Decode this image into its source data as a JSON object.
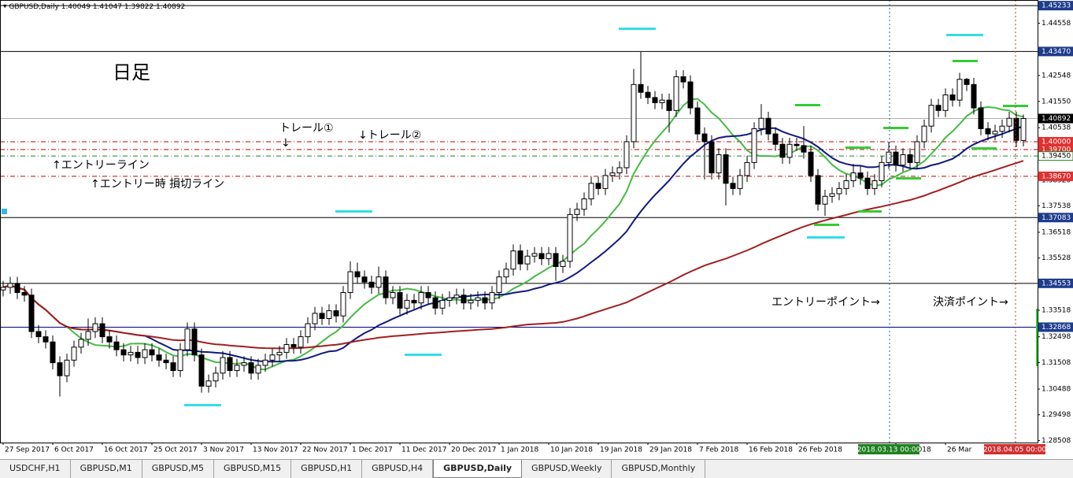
{
  "header": {
    "symbol": "GBPUSD,Daily"
  },
  "chart_data": {
    "type": "candlestick",
    "ylim": [
      1.2843,
      1.4545
    ],
    "yticks": [
      1.44558,
      1.42548,
      {
        "value": 1.4155,
        "label": "1.41550"
      },
      1.40538,
      {
        "value": 1.3852,
        "label": "1.38520"
      },
      1.37538,
      1.36518,
      1.35528,
      1.33518,
      1.32498,
      1.31508,
      1.30488,
      1.29498,
      1.28508
    ],
    "levels": [
      {
        "value": 1.45233,
        "label": "1.45233",
        "color": "#000000",
        "box": "#1e3c8c",
        "style": "solid"
      },
      {
        "value": 1.4347,
        "label": "1.43470",
        "color": "#000000",
        "box": "#1e3c8c",
        "style": "solid"
      },
      {
        "value": 1.40892,
        "label": "1.40892",
        "color": "#b0b0b0",
        "box": "#000000",
        "style": "solid"
      },
      {
        "value": 1.4,
        "label": "1.40000",
        "color": "#c00000",
        "box": "#e03030",
        "style": "dashdot"
      },
      {
        "value": 1.397,
        "label": "1.39700",
        "color": "#c00000",
        "box": "#e03030",
        "style": "dashdot"
      },
      {
        "value": 1.3945,
        "label": "1.39450",
        "color": "#208020",
        "box": "#ffffff",
        "style": "dashdot"
      },
      {
        "value": 1.3867,
        "label": "1.38670",
        "color": "#c00000",
        "box": "#e03030",
        "style": "dashdot"
      },
      {
        "value": 1.37083,
        "label": "1.37083",
        "color": "#000000",
        "box": "#1e3c8c",
        "style": "solid"
      },
      {
        "value": 1.34553,
        "label": "1.34553",
        "color": "#000000",
        "box": "#1e3c8c",
        "style": "solid"
      },
      {
        "value": 1.32868,
        "label": "1.32868",
        "color": "#000080",
        "box": "#1e3c8c",
        "style": "solid"
      }
    ],
    "x_labels": [
      "27 Sep 2017",
      "6 Oct 2017",
      "16 Oct 2017",
      "25 Oct 2017",
      "3 Nov 2017",
      "13 Nov 2017",
      "22 Nov 2017",
      "1 Dec 2017",
      "11 Dec 2017",
      "20 Dec 2017",
      "1 Jan 2018",
      "10 Jan 2018",
      "19 Jan 2018",
      "29 Jan 2018",
      "7 Feb 2018",
      "16 Feb 2018",
      "26 Feb 2018",
      null,
      "Mar 2018",
      "26 Mar"
    ],
    "crosshair_labels": [
      "2018.03.13 00:00",
      "2018.04.05 00:00"
    ],
    "candles": [
      [
        1.343,
        1.3465,
        1.3405,
        1.344
      ],
      [
        1.344,
        1.348,
        1.3415,
        1.3455
      ],
      [
        1.3455,
        1.348,
        1.3395,
        1.342
      ],
      [
        1.342,
        1.3445,
        1.3385,
        1.341
      ],
      [
        1.341,
        1.3435,
        1.3245,
        1.327
      ],
      [
        1.327,
        1.3295,
        1.3225,
        1.325
      ],
      [
        1.325,
        1.3275,
        1.3205,
        1.323
      ],
      [
        1.323,
        1.3255,
        1.3125,
        1.315
      ],
      [
        1.315,
        1.3175,
        1.302,
        1.31
      ],
      [
        1.31,
        1.3185,
        1.3075,
        1.316
      ],
      [
        1.316,
        1.3235,
        1.3135,
        1.321
      ],
      [
        1.321,
        1.3265,
        1.3185,
        1.324
      ],
      [
        1.324,
        1.332,
        1.3215,
        1.327
      ],
      [
        1.327,
        1.3325,
        1.3245,
        1.33
      ],
      [
        1.33,
        1.3325,
        1.3225,
        1.325
      ],
      [
        1.325,
        1.3275,
        1.3205,
        1.323
      ],
      [
        1.323,
        1.3255,
        1.3175,
        1.32
      ],
      [
        1.32,
        1.3225,
        1.3155,
        1.318
      ],
      [
        1.318,
        1.3215,
        1.3155,
        1.319
      ],
      [
        1.319,
        1.3215,
        1.3145,
        1.317
      ],
      [
        1.317,
        1.3225,
        1.3145,
        1.32
      ],
      [
        1.32,
        1.3225,
        1.3155,
        1.318
      ],
      [
        1.318,
        1.3205,
        1.3135,
        1.316
      ],
      [
        1.316,
        1.3185,
        1.3125,
        1.315
      ],
      [
        1.315,
        1.3175,
        1.3095,
        1.312
      ],
      [
        1.312,
        1.3225,
        1.3095,
        1.32
      ],
      [
        1.32,
        1.3305,
        1.3175,
        1.328
      ],
      [
        1.328,
        1.3305,
        1.3155,
        1.318
      ],
      [
        1.318,
        1.3205,
        1.3035,
        1.306
      ],
      [
        1.306,
        1.3105,
        1.3035,
        1.308
      ],
      [
        1.308,
        1.3135,
        1.3055,
        1.311
      ],
      [
        1.311,
        1.3195,
        1.3085,
        1.317
      ],
      [
        1.317,
        1.3195,
        1.3095,
        1.312
      ],
      [
        1.312,
        1.3165,
        1.3095,
        1.314
      ],
      [
        1.314,
        1.3175,
        1.3115,
        1.315
      ],
      [
        1.315,
        1.3175,
        1.3085,
        1.311
      ],
      [
        1.311,
        1.3165,
        1.3085,
        1.314
      ],
      [
        1.314,
        1.3185,
        1.3115,
        1.316
      ],
      [
        1.316,
        1.3205,
        1.3135,
        1.318
      ],
      [
        1.318,
        1.3215,
        1.3155,
        1.319
      ],
      [
        1.319,
        1.3245,
        1.3165,
        1.322
      ],
      [
        1.322,
        1.3245,
        1.3185,
        1.321
      ],
      [
        1.321,
        1.3275,
        1.3185,
        1.325
      ],
      [
        1.325,
        1.3325,
        1.3225,
        1.33
      ],
      [
        1.33,
        1.3365,
        1.3275,
        1.334
      ],
      [
        1.334,
        1.3365,
        1.3295,
        1.332
      ],
      [
        1.332,
        1.3375,
        1.3295,
        1.335
      ],
      [
        1.335,
        1.3375,
        1.3305,
        1.333
      ],
      [
        1.333,
        1.3445,
        1.3305,
        1.342
      ],
      [
        1.342,
        1.354,
        1.3395,
        1.35
      ],
      [
        1.35,
        1.3535,
        1.3455,
        1.348
      ],
      [
        1.348,
        1.3505,
        1.3435,
        1.346
      ],
      [
        1.346,
        1.3485,
        1.3415,
        1.344
      ],
      [
        1.344,
        1.352,
        1.3415,
        1.348
      ],
      [
        1.348,
        1.3505,
        1.3375,
        1.34
      ],
      [
        1.34,
        1.3445,
        1.3375,
        1.342
      ],
      [
        1.342,
        1.3445,
        1.3335,
        1.336
      ],
      [
        1.336,
        1.3415,
        1.3335,
        1.339
      ],
      [
        1.339,
        1.3415,
        1.3355,
        1.338
      ],
      [
        1.338,
        1.3445,
        1.3355,
        1.342
      ],
      [
        1.342,
        1.3445,
        1.3375,
        1.34
      ],
      [
        1.34,
        1.3425,
        1.3335,
        1.336
      ],
      [
        1.336,
        1.3415,
        1.3335,
        1.339
      ],
      [
        1.339,
        1.3425,
        1.3365,
        1.34
      ],
      [
        1.34,
        1.3435,
        1.3375,
        1.341
      ],
      [
        1.341,
        1.3435,
        1.3355,
        1.338
      ],
      [
        1.338,
        1.3415,
        1.3355,
        1.339
      ],
      [
        1.339,
        1.3425,
        1.3365,
        1.34
      ],
      [
        1.34,
        1.3425,
        1.3355,
        1.338
      ],
      [
        1.338,
        1.3445,
        1.3355,
        1.342
      ],
      [
        1.342,
        1.3505,
        1.3395,
        1.348
      ],
      [
        1.348,
        1.3535,
        1.3455,
        1.351
      ],
      [
        1.351,
        1.3605,
        1.3485,
        1.358
      ],
      [
        1.358,
        1.3605,
        1.3505,
        1.353
      ],
      [
        1.353,
        1.3585,
        1.3505,
        1.356
      ],
      [
        1.356,
        1.3595,
        1.3535,
        1.357
      ],
      [
        1.357,
        1.3595,
        1.3525,
        1.355
      ],
      [
        1.355,
        1.3595,
        1.3525,
        1.357
      ],
      [
        1.357,
        1.3595,
        1.3465,
        1.352
      ],
      [
        1.352,
        1.3565,
        1.3495,
        1.354
      ],
      [
        1.354,
        1.3745,
        1.3515,
        1.372
      ],
      [
        1.372,
        1.3765,
        1.3695,
        1.374
      ],
      [
        1.374,
        1.3805,
        1.3715,
        1.378
      ],
      [
        1.378,
        1.3865,
        1.3755,
        1.384
      ],
      [
        1.384,
        1.3865,
        1.3795,
        1.382
      ],
      [
        1.382,
        1.3895,
        1.3795,
        1.387
      ],
      [
        1.387,
        1.3905,
        1.3845,
        1.388
      ],
      [
        1.388,
        1.3925,
        1.3855,
        1.39
      ],
      [
        1.39,
        1.4025,
        1.3875,
        1.4
      ],
      [
        1.4,
        1.428,
        1.3975,
        1.422
      ],
      [
        1.422,
        1.4345,
        1.4165,
        1.419
      ],
      [
        1.419,
        1.4215,
        1.4145,
        1.417
      ],
      [
        1.417,
        1.4195,
        1.4125,
        1.415
      ],
      [
        1.415,
        1.4185,
        1.4125,
        1.416
      ],
      [
        1.416,
        1.4185,
        1.4035,
        1.412
      ],
      [
        1.412,
        1.4275,
        1.4095,
        1.425
      ],
      [
        1.425,
        1.4275,
        1.4205,
        1.423
      ],
      [
        1.423,
        1.4255,
        1.4105,
        1.413
      ],
      [
        1.413,
        1.4155,
        1.4005,
        1.403
      ],
      [
        1.403,
        1.4055,
        1.3855,
        1.4
      ],
      [
        1.4,
        1.4025,
        1.3855,
        1.388
      ],
      [
        1.388,
        1.3975,
        1.3855,
        1.395
      ],
      [
        1.395,
        1.3975,
        1.3755,
        1.384
      ],
      [
        1.384,
        1.3865,
        1.3795,
        1.382
      ],
      [
        1.382,
        1.3895,
        1.3795,
        1.387
      ],
      [
        1.387,
        1.3945,
        1.3845,
        1.392
      ],
      [
        1.392,
        1.4075,
        1.3895,
        1.405
      ],
      [
        1.405,
        1.4145,
        1.4025,
        1.409
      ],
      [
        1.409,
        1.4115,
        1.4005,
        1.403
      ],
      [
        1.403,
        1.4055,
        1.3965,
        1.399
      ],
      [
        1.399,
        1.4015,
        1.3915,
        1.394
      ],
      [
        1.394,
        1.4015,
        1.3915,
        1.399
      ],
      [
        1.399,
        1.4015,
        1.3965,
        1.3985
      ],
      [
        1.3985,
        1.406,
        1.3935,
        1.396
      ],
      [
        1.396,
        1.3985,
        1.3845,
        1.387
      ],
      [
        1.387,
        1.3895,
        1.3735,
        1.376
      ],
      [
        1.376,
        1.3815,
        1.3715,
        1.379
      ],
      [
        1.379,
        1.3825,
        1.3765,
        1.38
      ],
      [
        1.38,
        1.3845,
        1.3775,
        1.382
      ],
      [
        1.382,
        1.3875,
        1.3795,
        1.385
      ],
      [
        1.385,
        1.3915,
        1.3825,
        1.388
      ],
      [
        1.388,
        1.3905,
        1.3835,
        1.386
      ],
      [
        1.386,
        1.3885,
        1.3795,
        1.382
      ],
      [
        1.382,
        1.3875,
        1.3795,
        1.385
      ],
      [
        1.385,
        1.3945,
        1.3825,
        1.392
      ],
      [
        1.392,
        1.4,
        1.3895,
        1.396
      ],
      [
        1.396,
        1.3985,
        1.3885,
        1.391
      ],
      [
        1.391,
        1.3975,
        1.3885,
        1.395
      ],
      [
        1.395,
        1.3975,
        1.3895,
        1.392
      ],
      [
        1.392,
        1.4025,
        1.3895,
        1.4
      ],
      [
        1.4,
        1.4085,
        1.3975,
        1.406
      ],
      [
        1.406,
        1.4165,
        1.4035,
        1.414
      ],
      [
        1.414,
        1.4165,
        1.4095,
        1.412
      ],
      [
        1.412,
        1.4205,
        1.4095,
        1.418
      ],
      [
        1.418,
        1.4205,
        1.4135,
        1.416
      ],
      [
        1.416,
        1.4265,
        1.4135,
        1.424
      ],
      [
        1.424,
        1.4245,
        1.4195,
        1.422
      ],
      [
        1.422,
        1.4245,
        1.4105,
        1.413
      ],
      [
        1.413,
        1.4155,
        1.4025,
        1.405
      ],
      [
        1.405,
        1.4075,
        1.4005,
        1.403
      ],
      [
        1.403,
        1.4065,
        1.4005,
        1.404
      ],
      [
        1.404,
        1.4085,
        1.4015,
        1.406
      ],
      [
        1.406,
        1.4115,
        1.4035,
        1.409
      ],
      [
        1.409,
        1.4115,
        1.398,
        1.4005
      ],
      [
        1.40049,
        1.41047,
        1.39822,
        1.40892
      ]
    ]
  },
  "annotations": {
    "timeframe": "日足",
    "trail1": "トレール①",
    "trail1_arrow": "↓",
    "trail2": "↓トレール②",
    "entry_line": "↑エントリーライン",
    "stop_line": "↑エントリー時 損切ライン",
    "entry_point": "エントリーポイント→",
    "exit_point": "決済ポイント→"
  },
  "tabs": [
    "USDCHF,H1",
    "GBPUSD,M1",
    "GBPUSD,M5",
    "GBPUSD,M15",
    "GBPUSD,H1",
    "GBPUSD,H4",
    "GBPUSD,Daily",
    "GBPUSD,Weekly",
    "GBPUSD,Monthly"
  ]
}
